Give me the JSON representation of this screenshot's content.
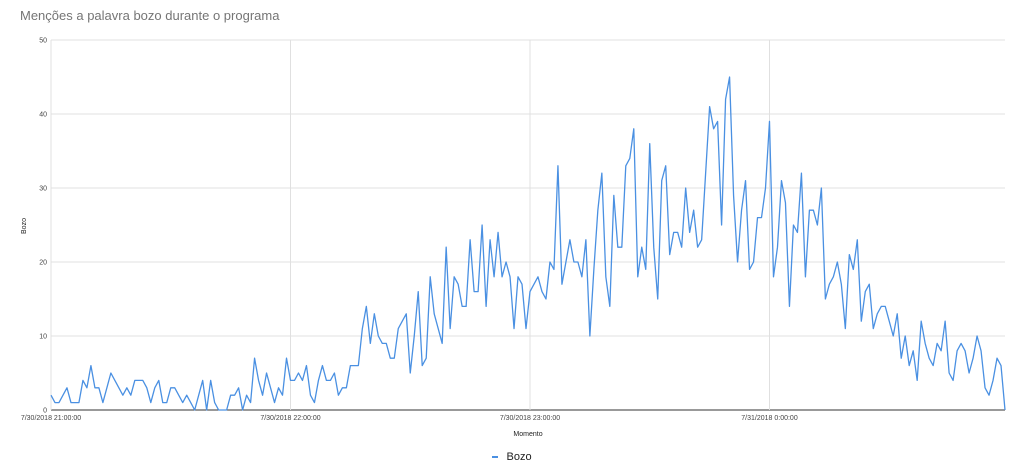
{
  "chart_data": {
    "type": "line",
    "title": "Menções a palavra bozo durante o programa",
    "xlabel": "Momento",
    "ylabel": "Bozo",
    "ylim": [
      0,
      50
    ],
    "y_ticks": [
      "0",
      "10",
      "20",
      "30",
      "40",
      "50"
    ],
    "x_ticks": [
      "7/30/2018 21:00:00",
      "7/30/2018 22:00:00",
      "7/30/2018 23:00:00",
      "7/31/2018 0:00:00"
    ],
    "x_range": [
      "7/30/2018 21:00:00",
      "7/31/2018 0:59:00"
    ],
    "grid": true,
    "legend_position": "bottom",
    "series": [
      {
        "name": "Bozo",
        "color": "#4a90e2",
        "values": [
          2,
          1,
          1,
          2,
          3,
          1,
          1,
          1,
          4,
          3,
          6,
          3,
          3,
          1,
          3,
          5,
          4,
          3,
          2,
          3,
          2,
          4,
          4,
          4,
          3,
          1,
          3,
          4,
          1,
          1,
          3,
          3,
          2,
          1,
          2,
          1,
          0,
          2,
          4,
          0,
          4,
          1,
          0,
          0,
          0,
          2,
          2,
          3,
          0,
          2,
          1,
          7,
          4,
          2,
          5,
          3,
          1,
          3,
          2,
          7,
          4,
          4,
          5,
          4,
          6,
          2,
          1,
          4,
          6,
          4,
          4,
          5,
          2,
          3,
          3,
          6,
          6,
          6,
          11,
          14,
          9,
          13,
          10,
          9,
          9,
          7,
          7,
          11,
          12,
          13,
          5,
          10,
          16,
          6,
          7,
          18,
          13,
          11,
          9,
          22,
          11,
          18,
          17,
          14,
          14,
          23,
          16,
          16,
          25,
          14,
          23,
          18,
          24,
          18,
          20,
          18,
          11,
          18,
          17,
          11,
          16,
          17,
          18,
          16,
          15,
          20,
          19,
          33,
          17,
          20,
          23,
          20,
          20,
          18,
          23,
          10,
          19,
          27,
          32,
          18,
          14,
          29,
          22,
          22,
          33,
          34,
          38,
          18,
          22,
          19,
          36,
          22,
          15,
          31,
          33,
          21,
          24,
          24,
          22,
          30,
          24,
          27,
          22,
          23,
          32,
          41,
          38,
          39,
          25,
          42,
          45,
          29,
          20,
          27,
          31,
          19,
          20,
          26,
          26,
          30,
          39,
          18,
          22,
          31,
          28,
          14,
          25,
          24,
          32,
          18,
          27,
          27,
          25,
          30,
          15,
          17,
          18,
          20,
          17,
          11,
          21,
          19,
          23,
          12,
          16,
          17,
          11,
          13,
          14,
          14,
          12,
          10,
          13,
          7,
          10,
          6,
          8,
          4,
          12,
          9,
          7,
          6,
          9,
          8,
          12,
          5,
          4,
          8,
          9,
          8,
          5,
          7,
          10,
          8,
          3,
          2,
          4,
          7,
          6,
          0
        ]
      }
    ]
  }
}
